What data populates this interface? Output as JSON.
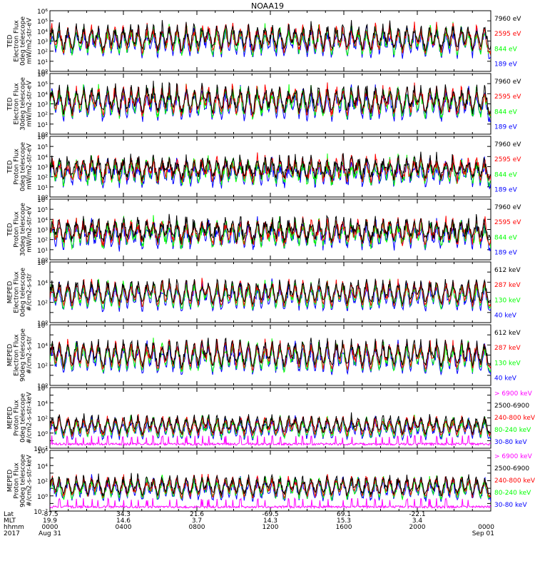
{
  "title": "NOAA19",
  "colors": {
    "black": "#000000",
    "red": "#ff0000",
    "green": "#00ff00",
    "blue": "#0000ff",
    "magenta": "#ff00ff"
  },
  "chart_data": {
    "type": "line",
    "title": "NOAA19",
    "x_ticks": {
      "rows": [
        {
          "name": "Lat",
          "values": [
            "-87.5",
            "34.3",
            "21.6",
            "-69.5",
            "69.1",
            "-22.1"
          ]
        },
        {
          "name": "MLT",
          "values": [
            "19.9",
            "14.6",
            "3.7",
            "14.3",
            "15.3",
            "3.4"
          ]
        },
        {
          "name": "hhmm",
          "values": [
            "0000",
            "0400",
            "0800",
            "1200",
            "1600",
            "2000",
            "0000"
          ]
        },
        {
          "name": "2017",
          "values": [
            "Aug 31",
            "",
            "",
            "",
            "",
            "",
            "Sep 01"
          ]
        }
      ]
    },
    "panels": [
      {
        "ylabel": [
          "TED",
          "Electron Flux",
          "0deg telescope",
          "mW/m2-str-eV"
        ],
        "ylim_exp": [
          0,
          6
        ],
        "yticks": [
          "10⁰",
          "10¹",
          "10²",
          "10³",
          "10⁴",
          "10⁵",
          "10⁶"
        ],
        "legend": [
          {
            "text": "7960 eV",
            "color": "#000000"
          },
          {
            "text": "2595 eV",
            "color": "#ff0000"
          },
          {
            "text": "844 eV",
            "color": "#00ff00"
          },
          {
            "text": "189 eV",
            "color": "#0000ff"
          }
        ],
        "baseline": 2.3,
        "peak": 3.1,
        "noise": 0.6
      },
      {
        "ylabel": [
          "TED",
          "Electron Flux",
          "30deg telescope",
          "mW/m2-str-eV"
        ],
        "ylim_exp": [
          0,
          6
        ],
        "yticks": [
          "10⁰",
          "10¹",
          "10²",
          "10³",
          "10⁴",
          "10⁵",
          "10⁶"
        ],
        "legend": [
          {
            "text": "7960 eV",
            "color": "#000000"
          },
          {
            "text": "2595 eV",
            "color": "#ff0000"
          },
          {
            "text": "844 eV",
            "color": "#00ff00"
          },
          {
            "text": "189 eV",
            "color": "#0000ff"
          }
        ],
        "baseline": 2.3,
        "peak": 3.3,
        "noise": 0.7
      },
      {
        "ylabel": [
          "TED",
          "Proton Flux",
          "0deg telescope",
          "mW/m2-str-eV"
        ],
        "ylim_exp": [
          0,
          6
        ],
        "yticks": [
          "10⁰",
          "10¹",
          "10²",
          "10³",
          "10⁴",
          "10⁵",
          "10⁶"
        ],
        "legend": [
          {
            "text": "7960 eV",
            "color": "#000000"
          },
          {
            "text": "2595 eV",
            "color": "#ff0000"
          },
          {
            "text": "844 eV",
            "color": "#00ff00"
          },
          {
            "text": "189 eV",
            "color": "#0000ff"
          }
        ],
        "baseline": 2.0,
        "peak": 2.6,
        "noise": 0.9
      },
      {
        "ylabel": [
          "TED",
          "Proton Flux",
          "30deg telescope",
          "mW/m2-str-eV"
        ],
        "ylim_exp": [
          0,
          6
        ],
        "yticks": [
          "10⁰",
          "10¹",
          "10²",
          "10³",
          "10⁴",
          "10⁵",
          "10⁶"
        ],
        "legend": [
          {
            "text": "7960 eV",
            "color": "#000000"
          },
          {
            "text": "2595 eV",
            "color": "#ff0000"
          },
          {
            "text": "844 eV",
            "color": "#00ff00"
          },
          {
            "text": "189 eV",
            "color": "#0000ff"
          }
        ],
        "baseline": 2.0,
        "peak": 2.8,
        "noise": 0.9
      },
      {
        "ylabel": [
          "MEPED",
          "Electron Flux",
          "0deg telescope",
          "#/cm2-s-str"
        ],
        "ylim_exp": [
          0,
          6
        ],
        "yticks": [
          "10⁰",
          "",
          "10²",
          "",
          "10⁴",
          "",
          "10⁶"
        ],
        "legend": [
          {
            "text": "612 keV",
            "color": "#000000"
          },
          {
            "text": "287 keV",
            "color": "#ff0000"
          },
          {
            "text": "130 keV",
            "color": "#00ff00"
          },
          {
            "text": "40 keV",
            "color": "#0000ff"
          }
        ],
        "baseline": 2.0,
        "peak": 3.0,
        "noise": 0.4
      },
      {
        "ylabel": [
          "MEPED",
          "Electron Flux",
          "90deg telescope",
          "#/cm2-s-str"
        ],
        "ylim_exp": [
          0,
          6
        ],
        "yticks": [
          "10⁰",
          "",
          "10²",
          "",
          "10⁴",
          "",
          "10⁶"
        ],
        "legend": [
          {
            "text": "612 keV",
            "color": "#000000"
          },
          {
            "text": "287 keV",
            "color": "#ff0000"
          },
          {
            "text": "130 keV",
            "color": "#00ff00"
          },
          {
            "text": "40 keV",
            "color": "#0000ff"
          }
        ],
        "baseline": 2.0,
        "peak": 3.3,
        "noise": 0.5
      },
      {
        "ylabel": [
          "MEPED",
          "Proton Flux",
          "0deg telescope",
          "#/cm2-s-str-keV"
        ],
        "ylim_exp": [
          -2,
          6
        ],
        "yticks": [
          "10⁻²",
          "",
          "10⁰",
          "",
          "10²",
          "",
          "10⁴",
          "",
          "10⁶"
        ],
        "legend": [
          {
            "text": "> 6900 keV",
            "color": "#ff00ff"
          },
          {
            "text": "2500-6900",
            "color": "#000000"
          },
          {
            "text": "240-800 keV",
            "color": "#ff0000"
          },
          {
            "text": "80-240 keV",
            "color": "#00ff00"
          },
          {
            "text": "30-80 keV",
            "color": "#0000ff"
          }
        ],
        "baseline": 0.3,
        "peak": 3.0,
        "noise": 0.5
      },
      {
        "ylabel": [
          "MEPED",
          "Proton Flux",
          "90deg telescope",
          "#/cm2-s-str-keV"
        ],
        "ylim_exp": [
          -2,
          6
        ],
        "yticks": [
          "10⁻²",
          "",
          "10⁰",
          "",
          "10²",
          "",
          "10⁴",
          "",
          "10⁶"
        ],
        "legend": [
          {
            "text": "> 6900 keV",
            "color": "#ff00ff"
          },
          {
            "text": "2500-6900",
            "color": "#000000"
          },
          {
            "text": "240-800 keV",
            "color": "#ff0000"
          },
          {
            "text": "80-240 keV",
            "color": "#00ff00"
          },
          {
            "text": "30-80 keV",
            "color": "#0000ff"
          }
        ],
        "baseline": 0.5,
        "peak": 3.2,
        "noise": 0.6
      }
    ],
    "xlim_hours": [
      0,
      24
    ],
    "grid": false
  }
}
